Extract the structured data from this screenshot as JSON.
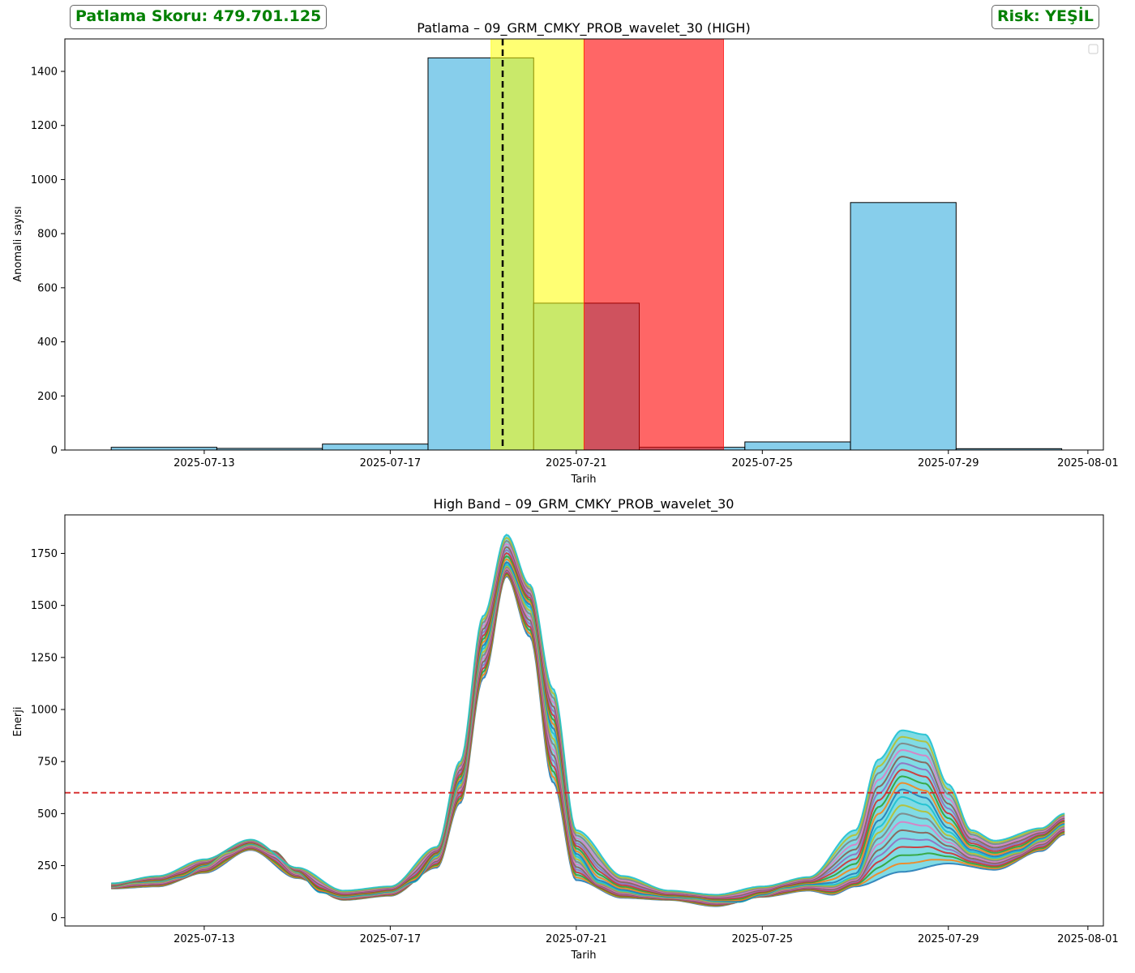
{
  "badges": {
    "score_text": "Patlama Skoru: 479.701.125",
    "risk_text": "Risk: YEŞİL"
  },
  "colors": {
    "bar_fill": "#87CEEB",
    "yellow_window": "#FFFF00",
    "red_window": "#FF0000",
    "threshold_line": "#D62728",
    "text_accent": "#008000"
  },
  "chart_data": [
    {
      "type": "bar",
      "title": "Patlama – 09_GRM_CMKY_PROB_wavelet_30 (HIGH)",
      "xlabel": "Tarih",
      "ylabel": "Anomali sayısı",
      "x_type": "date",
      "xlim": [
        "2025-07-10T00:05",
        "2025-08-01T08:00"
      ],
      "ylim": [
        0,
        1520
      ],
      "xticks": [
        "2025-07-13",
        "2025-07-17",
        "2025-07-21",
        "2025-07-25",
        "2025-07-29",
        "2025-08-01"
      ],
      "yticks": [
        0,
        200,
        400,
        600,
        800,
        1000,
        1200,
        1400
      ],
      "bins": [
        {
          "start": "2025-07-11T00:00",
          "end": "2025-07-13T06:30",
          "value": 10
        },
        {
          "start": "2025-07-13T06:30",
          "end": "2025-07-15T13:00",
          "value": 6
        },
        {
          "start": "2025-07-15T13:00",
          "end": "2025-07-17T19:30",
          "value": 22
        },
        {
          "start": "2025-07-17T19:30",
          "end": "2025-07-20T02:00",
          "value": 1450
        },
        {
          "start": "2025-07-20T02:00",
          "end": "2025-07-22T08:30",
          "value": 543
        },
        {
          "start": "2025-07-22T08:30",
          "end": "2025-07-24T15:00",
          "value": 10
        },
        {
          "start": "2025-07-24T15:00",
          "end": "2025-07-26T21:30",
          "value": 30
        },
        {
          "start": "2025-07-26T21:30",
          "end": "2025-07-29T04:00",
          "value": 915
        },
        {
          "start": "2025-07-29T04:00",
          "end": "2025-07-31T10:30",
          "value": 5
        }
      ],
      "spans": [
        {
          "color": "yellow",
          "start": "2025-07-19T04:00",
          "end": "2025-07-21T04:00"
        },
        {
          "color": "red",
          "start": "2025-07-21T04:00",
          "end": "2025-07-24T04:00"
        }
      ],
      "vline": {
        "x": "2025-07-19T10:00",
        "style": "dashed",
        "color": "black"
      },
      "legend": "top-right",
      "grid": false
    },
    {
      "type": "line",
      "title": "High Band – 09_GRM_CMKY_PROB_wavelet_30",
      "xlabel": "Tarih",
      "ylabel": "Enerji",
      "x_type": "date",
      "xlim": [
        "2025-07-10T00:05",
        "2025-08-01T08:00"
      ],
      "ylim": [
        -40,
        1935
      ],
      "xticks": [
        "2025-07-13",
        "2025-07-17",
        "2025-07-21",
        "2025-07-25",
        "2025-07-29",
        "2025-08-01"
      ],
      "yticks": [
        0,
        250,
        500,
        750,
        1000,
        1250,
        1500,
        1750
      ],
      "threshold": {
        "y": 600,
        "style": "dashed",
        "color": "red"
      },
      "grid": false,
      "series_profile": [
        [
          "2025-07-11T00:00",
          150
        ],
        [
          "2025-07-11T12:00",
          170
        ],
        [
          "2025-07-12T00:00",
          175
        ],
        [
          "2025-07-12T12:00",
          195
        ],
        [
          "2025-07-13T00:00",
          250
        ],
        [
          "2025-07-13T12:00",
          320
        ],
        [
          "2025-07-14T00:00",
          355
        ],
        [
          "2025-07-14T12:00",
          320
        ],
        [
          "2025-07-15T00:00",
          220
        ],
        [
          "2025-07-15T12:00",
          120
        ],
        [
          "2025-07-16T00:00",
          100
        ],
        [
          "2025-07-16T12:00",
          110
        ],
        [
          "2025-07-17T00:00",
          125
        ],
        [
          "2025-07-17T12:00",
          170
        ],
        [
          "2025-07-18T00:00",
          300
        ],
        [
          "2025-07-18T12:00",
          650
        ],
        [
          "2025-07-19T00:00",
          1300
        ],
        [
          "2025-07-19T12:00",
          1700
        ],
        [
          "2025-07-20T00:00",
          1500
        ],
        [
          "2025-07-20T12:00",
          900
        ],
        [
          "2025-07-21T00:00",
          300
        ],
        [
          "2025-07-21T12:00",
          170
        ],
        [
          "2025-07-22T00:00",
          130
        ],
        [
          "2025-07-22T12:00",
          110
        ],
        [
          "2025-07-23T00:00",
          100
        ],
        [
          "2025-07-23T12:00",
          95
        ],
        [
          "2025-07-24T00:00",
          80
        ],
        [
          "2025-07-24T12:00",
          75
        ],
        [
          "2025-07-25T00:00",
          110
        ],
        [
          "2025-07-25T12:00",
          145
        ],
        [
          "2025-07-26T00:00",
          160
        ],
        [
          "2025-07-26T12:00",
          160
        ],
        [
          "2025-07-27T00:00",
          200
        ],
        [
          "2025-07-27T12:00",
          450
        ],
        [
          "2025-07-28T00:00",
          600
        ],
        [
          "2025-07-28T12:00",
          560
        ],
        [
          "2025-07-29T00:00",
          420
        ],
        [
          "2025-07-29T12:00",
          320
        ],
        [
          "2025-07-30T00:00",
          290
        ],
        [
          "2025-07-30T12:00",
          320
        ],
        [
          "2025-07-31T00:00",
          380
        ],
        [
          "2025-07-31T12:00",
          450
        ]
      ],
      "envelope_max": [
        [
          "2025-07-11T00:00",
          165
        ],
        [
          "2025-07-12T00:00",
          200
        ],
        [
          "2025-07-13T00:00",
          280
        ],
        [
          "2025-07-14T00:00",
          375
        ],
        [
          "2025-07-15T00:00",
          240
        ],
        [
          "2025-07-16T00:00",
          130
        ],
        [
          "2025-07-17T00:00",
          150
        ],
        [
          "2025-07-18T00:00",
          340
        ],
        [
          "2025-07-18T12:00",
          750
        ],
        [
          "2025-07-19T00:00",
          1450
        ],
        [
          "2025-07-19T12:00",
          1840
        ],
        [
          "2025-07-20T00:00",
          1600
        ],
        [
          "2025-07-20T12:00",
          1100
        ],
        [
          "2025-07-21T00:00",
          420
        ],
        [
          "2025-07-22T00:00",
          200
        ],
        [
          "2025-07-23T00:00",
          130
        ],
        [
          "2025-07-24T00:00",
          110
        ],
        [
          "2025-07-25T00:00",
          150
        ],
        [
          "2025-07-26T00:00",
          195
        ],
        [
          "2025-07-27T00:00",
          420
        ],
        [
          "2025-07-27T12:00",
          760
        ],
        [
          "2025-07-28T00:00",
          900
        ],
        [
          "2025-07-28T12:00",
          880
        ],
        [
          "2025-07-29T00:00",
          640
        ],
        [
          "2025-07-29T12:00",
          420
        ],
        [
          "2025-07-30T00:00",
          370
        ],
        [
          "2025-07-31T00:00",
          430
        ],
        [
          "2025-07-31T12:00",
          500
        ]
      ],
      "envelope_min": [
        [
          "2025-07-11T00:00",
          140
        ],
        [
          "2025-07-12T00:00",
          150
        ],
        [
          "2025-07-13T00:00",
          215
        ],
        [
          "2025-07-14T00:00",
          325
        ],
        [
          "2025-07-15T00:00",
          190
        ],
        [
          "2025-07-16T00:00",
          85
        ],
        [
          "2025-07-17T00:00",
          105
        ],
        [
          "2025-07-18T00:00",
          240
        ],
        [
          "2025-07-18T12:00",
          550
        ],
        [
          "2025-07-19T00:00",
          1150
        ],
        [
          "2025-07-19T12:00",
          1640
        ],
        [
          "2025-07-20T00:00",
          1350
        ],
        [
          "2025-07-20T12:00",
          650
        ],
        [
          "2025-07-21T00:00",
          180
        ],
        [
          "2025-07-22T00:00",
          95
        ],
        [
          "2025-07-23T00:00",
          85
        ],
        [
          "2025-07-24T00:00",
          55
        ],
        [
          "2025-07-25T00:00",
          100
        ],
        [
          "2025-07-26T00:00",
          130
        ],
        [
          "2025-07-26T12:00",
          110
        ],
        [
          "2025-07-27T00:00",
          150
        ],
        [
          "2025-07-28T00:00",
          220
        ],
        [
          "2025-07-29T00:00",
          260
        ],
        [
          "2025-07-30T00:00",
          230
        ],
        [
          "2025-07-31T00:00",
          320
        ],
        [
          "2025-07-31T12:00",
          400
        ]
      ],
      "series_colors": [
        "#1f77b4",
        "#ff7f0e",
        "#2ca02c",
        "#d62728",
        "#9467bd",
        "#8c564b",
        "#e377c2",
        "#7f7f7f",
        "#bcbd22",
        "#17becf"
      ]
    }
  ]
}
